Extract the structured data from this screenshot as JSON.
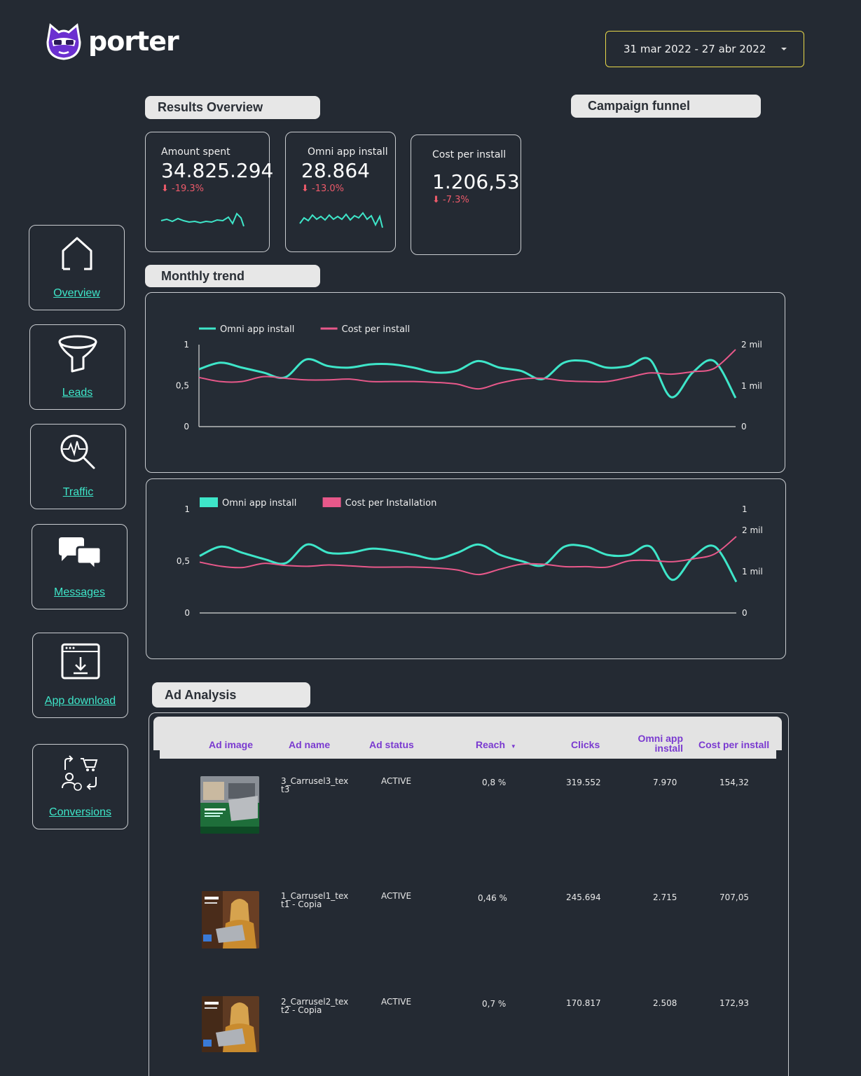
{
  "brand": {
    "name": "porter",
    "icon": "porter-cat-logo-icon"
  },
  "date_range": {
    "value": "31 mar 2022 - 27 abr 2022",
    "icon": "chevron-down-icon"
  },
  "sections": {
    "results_overview": "Results Overview",
    "campaign_funnel": "Campaign funnel",
    "monthly_trend": "Monthly trend",
    "ad_analysis": "Ad Analysis"
  },
  "kpis": [
    {
      "label": "Amount spent",
      "value": "34.825.294",
      "change": "-19.3%",
      "change_icon": "arrow-down-icon"
    },
    {
      "label": "Omni app install",
      "value": "28.864",
      "change": "-13.0%",
      "change_icon": "arrow-down-icon"
    },
    {
      "label": "Cost per install",
      "value": "1.206,53",
      "change": "-7.3%",
      "change_icon": "arrow-down-icon"
    }
  ],
  "nav": [
    {
      "label": "Overview",
      "icon": "home-icon"
    },
    {
      "label": "Leads",
      "icon": "funnel-icon"
    },
    {
      "label": "Traffic",
      "icon": "analytics-search-icon"
    },
    {
      "label": "Messages",
      "icon": "chat-bubbles-icon"
    },
    {
      "label": "App download",
      "icon": "download-window-icon"
    },
    {
      "label": "Conversions",
      "icon": "conversions-icon"
    }
  ],
  "colors": {
    "background": "#242a33",
    "teal": "#3ee6c9",
    "pink": "#e8588a",
    "accent_yellow": "#e8d84a",
    "header_purple": "#7a3ad0"
  },
  "chart_data": [
    {
      "type": "line",
      "legend": [
        "Omni app install",
        "Cost per install"
      ],
      "legend_style": "line",
      "left_ticks": [
        "1",
        "0,5",
        "0"
      ],
      "right_ticks": [
        "2 mil",
        "1 mil",
        "0"
      ],
      "ylim_left": [
        0,
        1
      ],
      "ylim_right": [
        0,
        2000
      ],
      "series": [
        {
          "name": "Omni app install",
          "axis": "left",
          "color": "#3ee6c9",
          "values": [
            0.7,
            0.78,
            0.72,
            0.66,
            0.6,
            0.82,
            0.74,
            0.72,
            0.76,
            0.76,
            0.72,
            0.66,
            0.68,
            0.8,
            0.72,
            0.68,
            0.58,
            0.78,
            0.8,
            0.72,
            0.74,
            0.82,
            0.36,
            0.66,
            0.8,
            0.35
          ]
        },
        {
          "name": "Cost per install",
          "axis": "right",
          "color": "#e8588a",
          "values": [
            1200,
            1100,
            1100,
            1220,
            1180,
            1140,
            1140,
            1160,
            1100,
            1100,
            1100,
            1080,
            1040,
            920,
            1060,
            1160,
            1180,
            1120,
            1100,
            1100,
            1200,
            1310,
            1280,
            1340,
            1420,
            1880
          ]
        }
      ]
    },
    {
      "type": "line",
      "legend": [
        "Omni app install",
        "Cost per Installation"
      ],
      "legend_style": "box",
      "left_ticks": [
        "1",
        "0,5",
        "0"
      ],
      "right_ticks": [
        "1",
        "2 mil",
        "1 mil",
        "0"
      ],
      "ylim_left": [
        0,
        1
      ],
      "ylim_right": [
        0,
        2000
      ],
      "series": [
        {
          "name": "Omni app install",
          "axis": "left",
          "color": "#3ee6c9",
          "values": [
            0.55,
            0.64,
            0.58,
            0.52,
            0.48,
            0.66,
            0.58,
            0.58,
            0.62,
            0.6,
            0.56,
            0.52,
            0.58,
            0.66,
            0.56,
            0.5,
            0.46,
            0.64,
            0.64,
            0.56,
            0.56,
            0.64,
            0.32,
            0.54,
            0.64,
            0.3
          ]
        },
        {
          "name": "Cost per Installation",
          "axis": "right",
          "color": "#e8588a",
          "values": [
            1230,
            1130,
            1100,
            1200,
            1150,
            1130,
            1160,
            1140,
            1110,
            1110,
            1110,
            1090,
            1040,
            930,
            1060,
            1180,
            1180,
            1120,
            1120,
            1110,
            1260,
            1270,
            1240,
            1310,
            1430,
            1850
          ]
        }
      ]
    }
  ],
  "table": {
    "columns": [
      "Ad image",
      "Ad name",
      "Ad status",
      "Reach",
      "Clicks",
      "Omni app install",
      "Cost per install"
    ],
    "sort_icon": "sort-desc-icon",
    "rows": [
      {
        "image": "laptop-ad-thumbnail",
        "name_lines": [
          "3_Carrusel3_tex",
          "t3"
        ],
        "status": "ACTIVE",
        "reach": "0,8 %",
        "clicks": "319.552",
        "installs": "7.970",
        "cpi": "154,32"
      },
      {
        "image": "woman-laptop-ad-thumbnail",
        "name_lines": [
          "1_Carrusel1_tex",
          "t1 - Copia"
        ],
        "status": "ACTIVE",
        "reach": "0,46 %",
        "clicks": "245.694",
        "installs": "2.715",
        "cpi": "707,05"
      },
      {
        "image": "woman-laptop-ad-thumbnail",
        "name_lines": [
          "2_Carrusel2_tex",
          "t2 - Copia"
        ],
        "status": "ACTIVE",
        "reach": "0,7 %",
        "clicks": "170.817",
        "installs": "2.508",
        "cpi": "172,93"
      }
    ]
  }
}
